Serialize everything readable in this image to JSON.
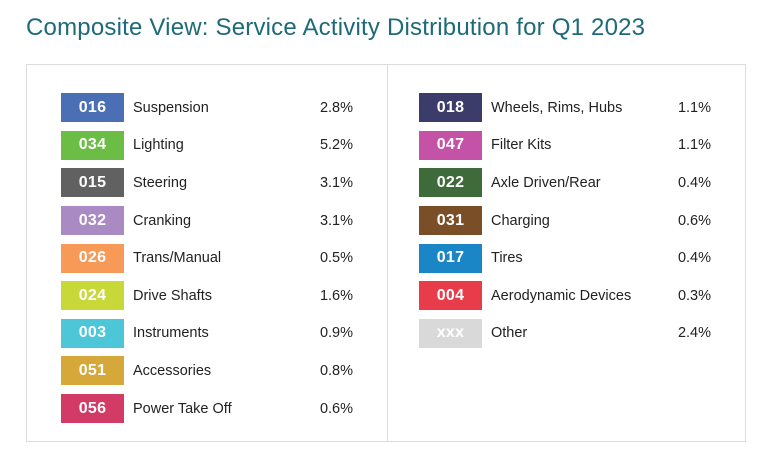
{
  "title": "Composite View: Service Activity Distribution for Q1 2023",
  "left_items": [
    {
      "code": "016",
      "label": "Suspension",
      "pct": "2.8%",
      "color": "#4a6fb5"
    },
    {
      "code": "034",
      "label": "Lighting",
      "pct": "5.2%",
      "color": "#6cbd45"
    },
    {
      "code": "015",
      "label": "Steering",
      "pct": "3.1%",
      "color": "#616161"
    },
    {
      "code": "032",
      "label": "Cranking",
      "pct": "3.1%",
      "color": "#a98ac3"
    },
    {
      "code": "026",
      "label": "Trans/Manual",
      "pct": "0.5%",
      "color": "#f79a58"
    },
    {
      "code": "024",
      "label": "Drive Shafts",
      "pct": "1.6%",
      "color": "#c8d838"
    },
    {
      "code": "003",
      "label": "Instruments",
      "pct": "0.9%",
      "color": "#4dc6d8"
    },
    {
      "code": "051",
      "label": "Accessories",
      "pct": "0.8%",
      "color": "#d6a83a"
    },
    {
      "code": "056",
      "label": "Power Take Off",
      "pct": "0.6%",
      "color": "#d23b66"
    }
  ],
  "right_items": [
    {
      "code": "018",
      "label": "Wheels, Rims, Hubs",
      "pct": "1.1%",
      "color": "#3c3c6a"
    },
    {
      "code": "047",
      "label": "Filter Kits",
      "pct": "1.1%",
      "color": "#c452a6"
    },
    {
      "code": "022",
      "label": "Axle Driven/Rear",
      "pct": "0.4%",
      "color": "#3f6b3a"
    },
    {
      "code": "031",
      "label": "Charging",
      "pct": "0.6%",
      "color": "#7a4f28"
    },
    {
      "code": "017",
      "label": "Tires",
      "pct": "0.4%",
      "color": "#1b86c6"
    },
    {
      "code": "004",
      "label": "Aerodynamic Devices",
      "pct": "0.3%",
      "color": "#e83c4a"
    },
    {
      "code": "xxx",
      "label": "Other",
      "pct": "2.4%",
      "color": "#d9d9d9"
    }
  ]
}
